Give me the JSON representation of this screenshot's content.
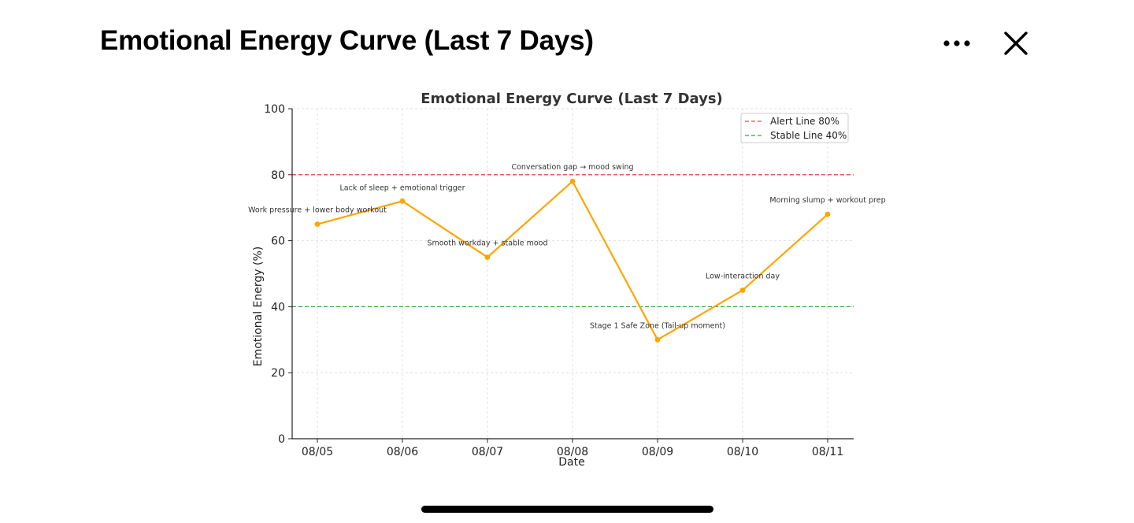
{
  "header": {
    "title": "Emotional Energy Curve (Last 7 Days)",
    "more_icon": "more-horizontal-icon",
    "close_icon": "close-icon"
  },
  "chart_data": {
    "type": "line",
    "title": "Emotional Energy Curve (Last 7 Days)",
    "xlabel": "Date",
    "ylabel": "Emotional Energy (%)",
    "ylim": [
      0,
      100
    ],
    "yticks": [
      0,
      20,
      40,
      60,
      80,
      100
    ],
    "categories": [
      "08/05",
      "08/06",
      "08/07",
      "08/08",
      "08/09",
      "08/10",
      "08/11"
    ],
    "series": [
      {
        "values": [
          65,
          72,
          55,
          78,
          30,
          45,
          68
        ],
        "color": "#ffa500"
      }
    ],
    "annotations": [
      "Work pressure + lower body workout",
      "Lack of sleep + emotional trigger",
      "Smooth workday + stable mood",
      "Conversation gap → mood swing",
      "Stage 1 Safe Zone (Tail-up moment)",
      "Low-interaction day",
      "Morning slump + workout prep"
    ],
    "reference_lines": [
      {
        "label": "Alert Line 80%",
        "value": 80,
        "color": "#e8474b"
      },
      {
        "label": "Stable Line 40%",
        "value": 40,
        "color": "#3aa33a"
      }
    ],
    "grid": true,
    "legend_position": "top-right"
  }
}
